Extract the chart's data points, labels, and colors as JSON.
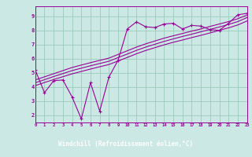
{
  "bg_color": "#cce8e4",
  "line_color": "#990099",
  "grid_color": "#99ccbb",
  "xlabel": "Windchill (Refroidissement éolien,°C)",
  "xlim": [
    0,
    23
  ],
  "ylim": [
    1.5,
    9.7
  ],
  "yticks": [
    2,
    3,
    4,
    5,
    6,
    7,
    8,
    9
  ],
  "xticks": [
    0,
    1,
    2,
    3,
    4,
    5,
    6,
    7,
    8,
    9,
    10,
    11,
    12,
    13,
    14,
    15,
    16,
    17,
    18,
    19,
    20,
    21,
    22,
    23
  ],
  "s1x": [
    0,
    1,
    2,
    3,
    4,
    5,
    6,
    7,
    8,
    9,
    10,
    11,
    12,
    13,
    14,
    15,
    16,
    17,
    18,
    19,
    20,
    21,
    22,
    23
  ],
  "s1y": [
    5.2,
    3.6,
    4.45,
    4.5,
    3.3,
    1.75,
    4.3,
    2.3,
    4.7,
    5.9,
    8.1,
    8.6,
    8.25,
    8.2,
    8.45,
    8.5,
    8.1,
    8.35,
    8.3,
    8.05,
    8.0,
    8.5,
    9.1,
    9.2
  ],
  "s2x": [
    0,
    1,
    2,
    3,
    4,
    5,
    6,
    7,
    8,
    9,
    10,
    11,
    12,
    13,
    14,
    15,
    16,
    17,
    18,
    19,
    20,
    21,
    22,
    23
  ],
  "s2y": [
    4.5,
    4.72,
    4.94,
    5.16,
    5.38,
    5.55,
    5.72,
    5.88,
    6.04,
    6.3,
    6.56,
    6.82,
    7.05,
    7.25,
    7.45,
    7.62,
    7.78,
    7.95,
    8.1,
    8.28,
    8.45,
    8.62,
    8.82,
    9.08
  ],
  "s3x": [
    0,
    1,
    2,
    3,
    4,
    5,
    6,
    7,
    8,
    9,
    10,
    11,
    12,
    13,
    14,
    15,
    16,
    17,
    18,
    19,
    20,
    21,
    22,
    23
  ],
  "s3y": [
    4.3,
    4.52,
    4.74,
    4.95,
    5.16,
    5.33,
    5.5,
    5.66,
    5.82,
    6.08,
    6.33,
    6.59,
    6.82,
    7.02,
    7.22,
    7.4,
    7.57,
    7.73,
    7.9,
    8.07,
    8.24,
    8.42,
    8.62,
    8.9
  ],
  "s4x": [
    0,
    1,
    2,
    3,
    4,
    5,
    6,
    7,
    8,
    9,
    10,
    11,
    12,
    13,
    14,
    15,
    16,
    17,
    18,
    19,
    20,
    21,
    22,
    23
  ],
  "s4y": [
    4.1,
    4.32,
    4.53,
    4.73,
    4.93,
    5.1,
    5.27,
    5.43,
    5.59,
    5.84,
    6.09,
    6.35,
    6.58,
    6.78,
    6.98,
    7.16,
    7.32,
    7.49,
    7.65,
    7.82,
    8.0,
    8.18,
    8.38,
    8.66
  ]
}
